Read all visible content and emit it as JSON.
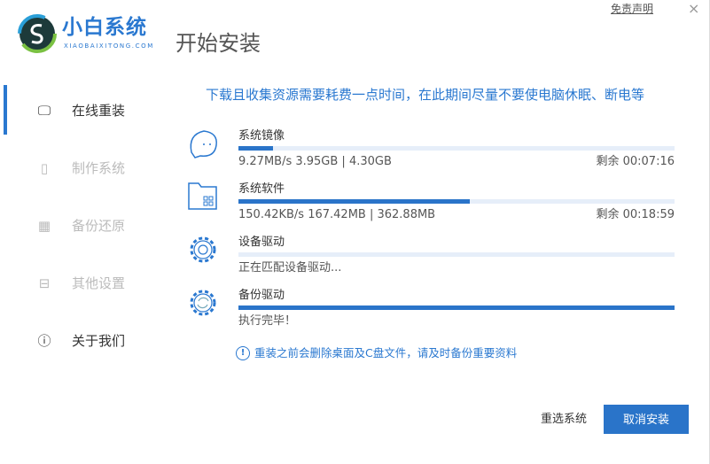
{
  "app": {
    "brand": "小白系统",
    "brand_sub": "XIAOBAIXITONG.COM",
    "title": "开始安装",
    "disclaimer": "免责声明",
    "close": "×"
  },
  "sidebar": {
    "items": [
      {
        "label": "在线重装",
        "icon": "monitor-icon",
        "active": true
      },
      {
        "label": "制作系统",
        "icon": "usb-icon",
        "active": false
      },
      {
        "label": "备份还原",
        "icon": "grid-icon",
        "active": false
      },
      {
        "label": "其他设置",
        "icon": "toolbox-icon",
        "active": false
      },
      {
        "label": "关于我们",
        "icon": "info-icon",
        "active": false
      }
    ]
  },
  "notice": "下载且收集资源需要耗费一点时间，在此期间尽量不要使电脑休眠、断电等",
  "tasks": [
    {
      "label": "系统镜像",
      "icon": "ghost-icon",
      "progress": 8,
      "detail": "9.27MB/s 3.95GB | 4.30GB",
      "remaining": "剩余 00:07:16"
    },
    {
      "label": "系统软件",
      "icon": "folder-apps-icon",
      "progress": 53,
      "detail": "150.42KB/s 167.42MB | 362.88MB",
      "remaining": "剩余 00:18:59"
    },
    {
      "label": "设备驱动",
      "icon": "gear-icon",
      "progress": 0,
      "detail": "正在匹配设备驱动..."
    },
    {
      "label": "备份驱动",
      "icon": "gear-refresh-icon",
      "progress": 100,
      "detail": "执行完毕！"
    }
  ],
  "warning": "重装之前会删除桌面及C盘文件，请及时备份重要资料",
  "buttons": {
    "reselect": "重选系统",
    "cancel": "取消安装"
  },
  "colors": {
    "accent": "#2a74c9"
  }
}
